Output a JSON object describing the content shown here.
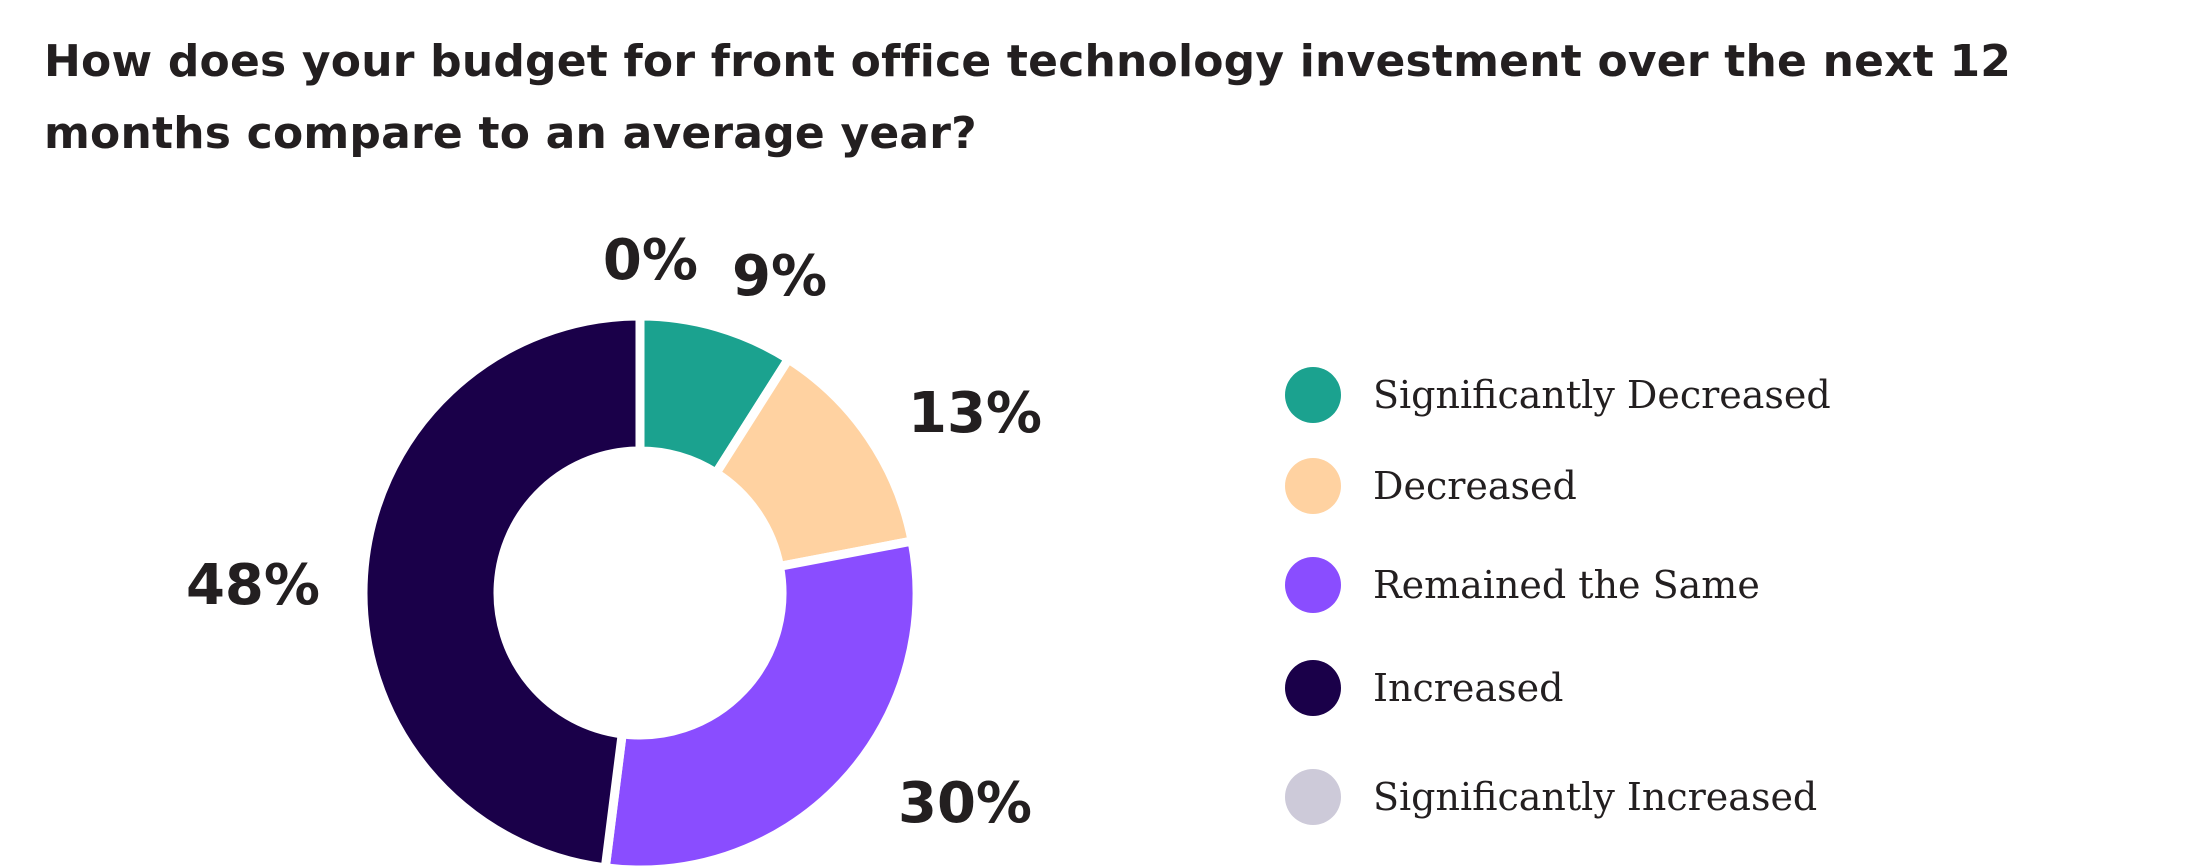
{
  "chart_data": {
    "type": "pie",
    "title": "How does your budget for front office technology investment over the next 12 months compare to an average year?",
    "categories": [
      "Significantly Decreased",
      "Decreased",
      "Remained the Same",
      "Increased",
      "Significantly Increased"
    ],
    "values": [
      9,
      13,
      30,
      48,
      0
    ],
    "value_labels": [
      "9%",
      "13%",
      "30%",
      "48%",
      "0%"
    ],
    "colors": [
      "#1ba28f",
      "#ffd2a1",
      "#8a4dff",
      "#1a0049",
      "#cdcad9"
    ],
    "unit": "%",
    "donut": true,
    "legend_position": "right"
  }
}
